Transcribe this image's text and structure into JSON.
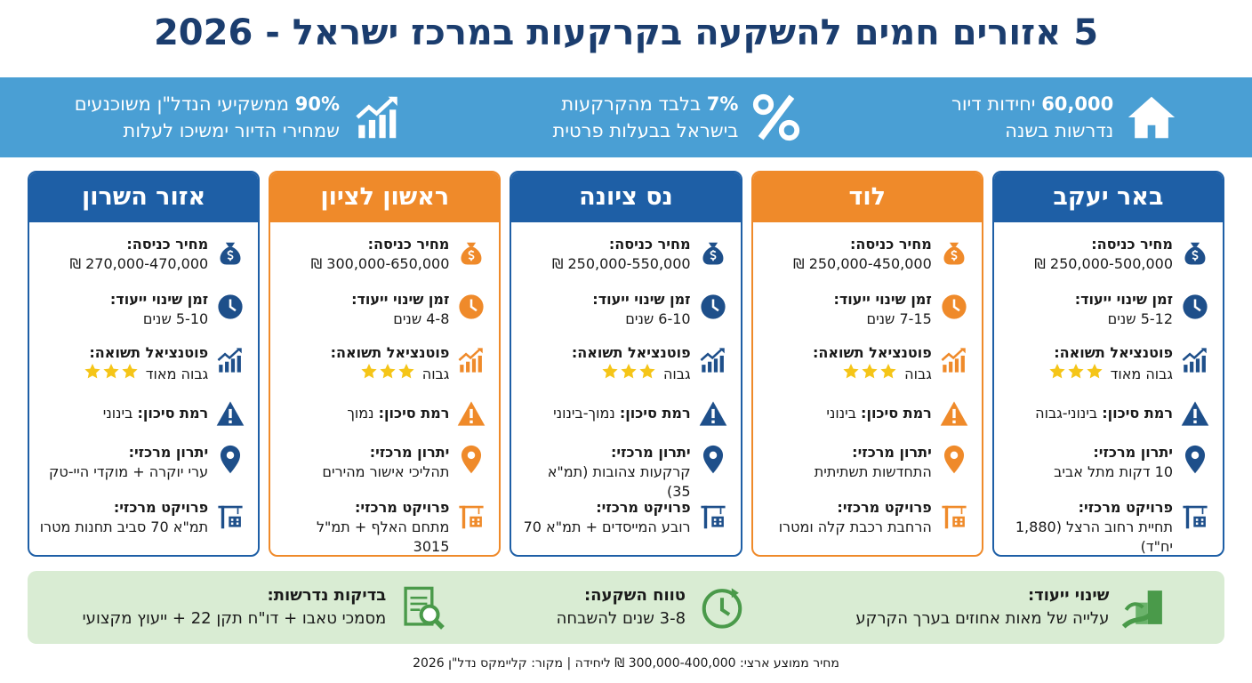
{
  "title": "5 אזורים חמים להשקעה בקרקעות במרכז ישראל - 2026",
  "stats": [
    {
      "highlight": "60,000",
      "text": "יחידות דיור",
      "line2": "נדרשות בשנה"
    },
    {
      "highlight": "7%",
      "text": "בלבד מהקרקעות",
      "line2": "בישראל בבעלות פרטית"
    },
    {
      "highlight": "90%",
      "text": "ממשקיעי הנדל\"ן משוכנעים",
      "line2": "שמחירי הדיור ימשיכו לעלות"
    }
  ],
  "regions": [
    {
      "name": "באר יעקב",
      "rows": [
        {
          "label": "מחיר כניסה:",
          "value": "250,000-500,000 ₪"
        },
        {
          "label": "זמן שינוי ייעוד:",
          "value": "5-12 שנים"
        },
        {
          "label": "פוטנציאל תשואה:",
          "value": "גבוה מאוד"
        },
        {
          "label": "רמת סיכון:",
          "value": "בינוני-גבוה"
        },
        {
          "label": "יתרון מרכזי:",
          "value": "10 דקות מתל אביב"
        },
        {
          "label": "פרויקט מרכזי:",
          "value": "תחיית רחוב הרצל (1,880 יח\"ד)"
        }
      ]
    },
    {
      "name": "לוד",
      "rows": [
        {
          "label": "מחיר כניסה:",
          "value": "250,000-450,000 ₪"
        },
        {
          "label": "זמן שינוי ייעוד:",
          "value": "7-15 שנים"
        },
        {
          "label": "פוטנציאל תשואה:",
          "value": "גבוה"
        },
        {
          "label": "רמת סיכון:",
          "value": "בינוני"
        },
        {
          "label": "יתרון מרכזי:",
          "value": "התחדשות תשתיתית"
        },
        {
          "label": "פרויקט מרכזי:",
          "value": "הרחבת רכבת קלה ומטרו"
        }
      ]
    },
    {
      "name": "נס ציונה",
      "rows": [
        {
          "label": "מחיר כניסה:",
          "value": "250,000-550,000 ₪"
        },
        {
          "label": "זמן שינוי ייעוד:",
          "value": "6-10 שנים"
        },
        {
          "label": "פוטנציאל תשואה:",
          "value": "גבוה"
        },
        {
          "label": "רמת סיכון:",
          "value": "נמוך-בינוני"
        },
        {
          "label": "יתרון מרכזי:",
          "value": "קרקעות צהובות (תמ\"א 35)"
        },
        {
          "label": "פרויקט מרכזי:",
          "value": "רובע המייסדים + תמ\"א 70"
        }
      ]
    },
    {
      "name": "ראשון לציון",
      "rows": [
        {
          "label": "מחיר כניסה:",
          "value": "300,000-650,000 ₪"
        },
        {
          "label": "זמן שינוי ייעוד:",
          "value": "4-8 שנים"
        },
        {
          "label": "פוטנציאל תשואה:",
          "value": "גבוה"
        },
        {
          "label": "רמת סיכון:",
          "value": "נמוך"
        },
        {
          "label": "יתרון מרכזי:",
          "value": "תהליכי אישור מהירים"
        },
        {
          "label": "פרויקט מרכזי:",
          "value": "מתחם האלף + תמ\"ל 3015"
        }
      ]
    },
    {
      "name": "אזור השרון",
      "rows": [
        {
          "label": "מחיר כניסה:",
          "value": "270,000-470,000 ₪"
        },
        {
          "label": "זמן שינוי ייעוד:",
          "value": "5-10 שנים"
        },
        {
          "label": "פוטנציאל תשואה:",
          "value": "גבוה מאוד"
        },
        {
          "label": "רמת סיכון:",
          "value": "בינוני"
        },
        {
          "label": "יתרון מרכזי:",
          "value": "ערי יוקרה + מוקדי היי-טק"
        },
        {
          "label": "פרויקט מרכזי:",
          "value": "תמ\"א 70 סביב תחנות מטרו"
        }
      ]
    }
  ],
  "tips": [
    {
      "title": "שינוי ייעוד:",
      "text": "עלייה של מאות אחוזים בערך הקרקע"
    },
    {
      "title": "טווח השקעה:",
      "text": "3-8 שנים להשבחה"
    },
    {
      "title": "בדיקות נדרשות:",
      "text": "מסמכי טאבו + דו\"ח תקן 22 + ייעוץ מקצועי"
    }
  ],
  "footer": "מחיר ממוצע ארצי: 300,000-400,000 ₪ ליחידה | מקור: קליימקס נדל\"ן 2026"
}
